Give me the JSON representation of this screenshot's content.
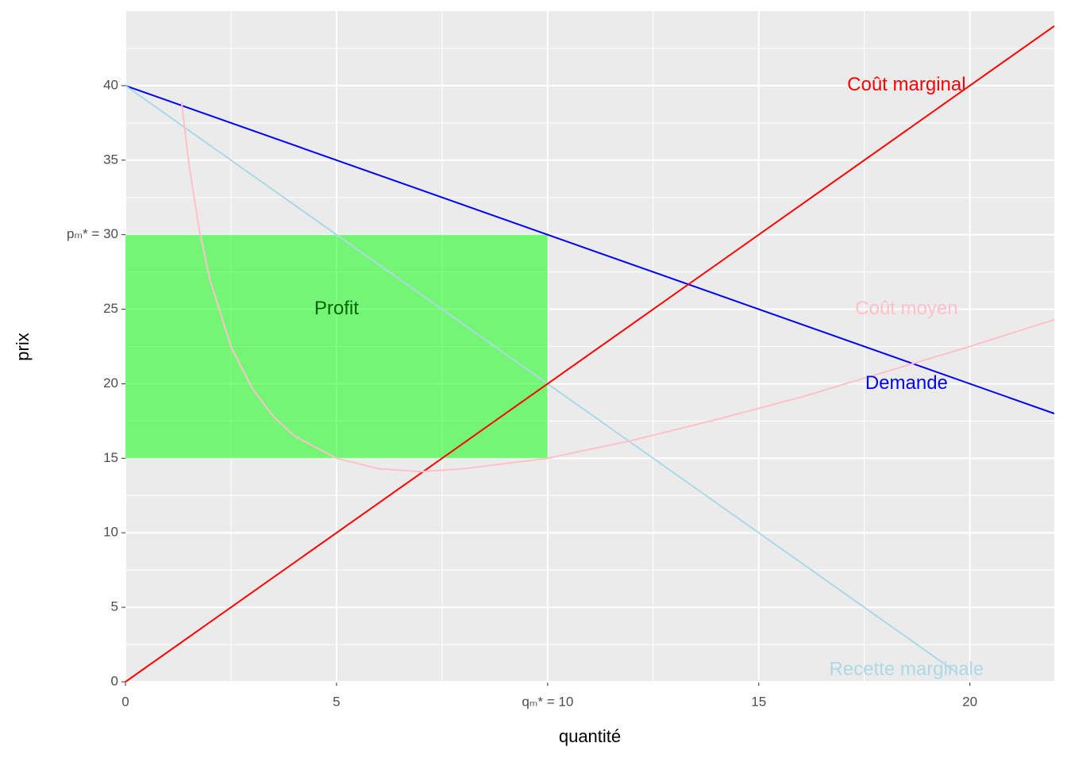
{
  "chart_data": {
    "type": "line",
    "x_label": "quantité",
    "y_label": "prix",
    "xlim": [
      0,
      22
    ],
    "ylim": [
      0,
      45
    ],
    "xticks": [
      0,
      5,
      {
        "value": 10,
        "label": "qₘ* = 10"
      },
      15,
      20
    ],
    "yticks": [
      0,
      5,
      10,
      15,
      20,
      25,
      {
        "value": 30,
        "label": "pₘ* = 30"
      },
      35,
      40
    ],
    "grid": true,
    "rect": {
      "name": "Profit",
      "color": "#00ff00",
      "x": [
        0,
        10
      ],
      "y": [
        15,
        30
      ]
    },
    "series": [
      {
        "name": "Demande",
        "color": "blue",
        "x": [
          0,
          22
        ],
        "values": [
          40,
          18
        ]
      },
      {
        "name": "Recette marginale",
        "color": "lightblue",
        "x": [
          0,
          19.7
        ],
        "values": [
          40,
          0.6
        ]
      },
      {
        "name": "Coût marginal",
        "color": "red",
        "x": [
          0,
          22
        ],
        "values": [
          0,
          44
        ]
      },
      {
        "name": "Coût moyen",
        "color": "pink",
        "x": [
          1.33,
          1.5,
          1.75,
          2,
          2.5,
          3,
          3.5,
          4,
          5,
          6,
          7,
          8,
          10,
          12,
          14,
          16,
          18,
          20,
          22
        ],
        "values": [
          38.9,
          34.8,
          30.3,
          27,
          22.5,
          19.7,
          17.8,
          16.5,
          15,
          14.3,
          14.1,
          14.3,
          15,
          16.2,
          17.6,
          19.1,
          20.8,
          22.5,
          24.3
        ]
      }
    ],
    "annotations": [
      {
        "text": "Coût marginal",
        "x": 18.5,
        "y": 40,
        "color": "red"
      },
      {
        "text": "Coût moyen",
        "x": 18.5,
        "y": 25,
        "color": "pink"
      },
      {
        "text": "Demande",
        "x": 18.5,
        "y": 20,
        "color": "blue"
      },
      {
        "text": "Recette marginale",
        "x": 18.5,
        "y": 0.8,
        "color": "lightblue"
      },
      {
        "text": "Profit",
        "x": 5,
        "y": 25,
        "color": "darkgreen"
      }
    ]
  }
}
